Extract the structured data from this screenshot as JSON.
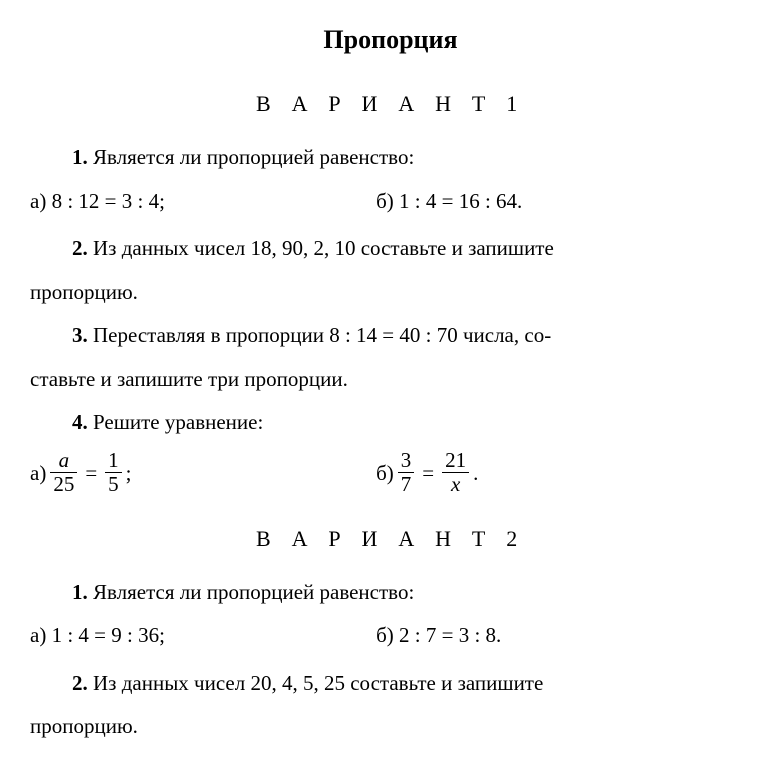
{
  "title": "Пропорция",
  "variant1": {
    "header": "В А Р И А Н Т   1",
    "q1": {
      "num": "1.",
      "text": "Является ли пропорцией равенство:",
      "a_label": "а)",
      "a_expr": "8 : 12 = 3 : 4;",
      "b_label": "б)",
      "b_expr": "1 : 4 = 16 : 64."
    },
    "q2": {
      "num": "2.",
      "text_line1": "Из данных чисел 18, 90, 2, 10 составьте и запишите",
      "text_line2": "пропорцию."
    },
    "q3": {
      "num": "3.",
      "text_line1": "Переставляя в пропорции 8 : 14 = 40 : 70 числа, со-",
      "text_line2": "ставьте и запишите три пропорции."
    },
    "q4": {
      "num": "4.",
      "text": "Решите уравнение:",
      "a_label": "а)",
      "a_frac1_num": "a",
      "a_frac1_den": "25",
      "a_frac2_num": "1",
      "a_frac2_den": "5",
      "a_tail": ";",
      "b_label": "б)",
      "b_frac1_num": "3",
      "b_frac1_den": "7",
      "b_frac2_num": "21",
      "b_frac2_den": "x",
      "b_tail": "."
    }
  },
  "variant2": {
    "header": "В А Р И А Н Т   2",
    "q1": {
      "num": "1.",
      "text": "Является ли пропорцией равенство:",
      "a_label": "а)",
      "a_expr": "1 : 4 = 9 : 36;",
      "b_label": "б)",
      "b_expr": "2 : 7 = 3 : 8."
    },
    "q2": {
      "num": "2.",
      "text_line1": "Из данных чисел 20, 4, 5, 25 составьте и запишите",
      "text_line2": "пропорцию."
    }
  }
}
